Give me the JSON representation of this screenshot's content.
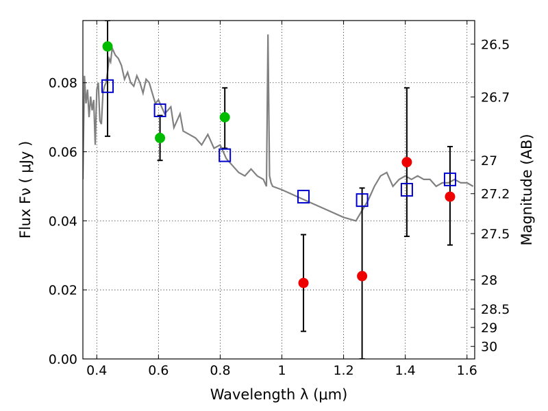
{
  "chart_data": {
    "type": "scatter",
    "xlabel": "Wavelength  λ (μm)",
    "ylabel": "Flux  Fν  ( μJy )",
    "y2label": "Magnitude (AB)",
    "xlim": [
      0.355,
      1.625
    ],
    "ylim": [
      0.0,
      0.098
    ],
    "grid": true,
    "x_ticks": [
      0.4,
      0.6,
      0.8,
      1.0,
      1.2,
      1.4,
      1.6
    ],
    "x_tick_labels": [
      "0.4",
      "0.6",
      "0.8",
      "1",
      "1.2",
      "1.4",
      "1.6"
    ],
    "y_ticks": [
      0.0,
      0.02,
      0.04,
      0.06,
      0.08
    ],
    "y_tick_labels": [
      "0.00",
      "0.02",
      "0.04",
      "0.06",
      "0.08"
    ],
    "magnitude_ticks": [
      {
        "label": "26.5",
        "value": 26.5
      },
      {
        "label": "26.7",
        "value": 26.7
      },
      {
        "label": "27",
        "value": 27.0
      },
      {
        "label": "27.2",
        "value": 27.2
      },
      {
        "label": "27.5",
        "value": 27.5
      },
      {
        "label": "28",
        "value": 28.0
      },
      {
        "label": "28.5",
        "value": 28.5
      },
      {
        "label": "29",
        "value": 29.0
      },
      {
        "label": "30",
        "value": 30.0
      }
    ],
    "colors": {
      "template": "#808080",
      "model": "#0000cc",
      "detected": "#00bb00",
      "nondetected": "#ee0000",
      "errorbar": "#000000"
    },
    "template_spectrum": {
      "x": [
        0.355,
        0.36,
        0.365,
        0.37,
        0.375,
        0.38,
        0.385,
        0.39,
        0.395,
        0.4,
        0.405,
        0.41,
        0.415,
        0.42,
        0.425,
        0.43,
        0.435,
        0.44,
        0.445,
        0.45,
        0.46,
        0.47,
        0.48,
        0.49,
        0.5,
        0.51,
        0.52,
        0.53,
        0.54,
        0.55,
        0.56,
        0.57,
        0.58,
        0.59,
        0.6,
        0.61,
        0.62,
        0.63,
        0.64,
        0.65,
        0.66,
        0.67,
        0.68,
        0.7,
        0.72,
        0.74,
        0.76,
        0.78,
        0.8,
        0.82,
        0.84,
        0.86,
        0.88,
        0.9,
        0.92,
        0.94,
        0.95,
        0.955,
        0.96,
        0.965,
        0.97,
        1.0,
        1.05,
        1.1,
        1.15,
        1.2,
        1.24,
        1.26,
        1.28,
        1.3,
        1.32,
        1.34,
        1.36,
        1.38,
        1.4,
        1.42,
        1.44,
        1.46,
        1.48,
        1.5,
        1.52,
        1.54,
        1.56,
        1.58,
        1.6,
        1.62
      ],
      "y": [
        0.052,
        0.082,
        0.074,
        0.078,
        0.07,
        0.076,
        0.072,
        0.075,
        0.062,
        0.078,
        0.08,
        0.069,
        0.068,
        0.077,
        0.079,
        0.08,
        0.083,
        0.087,
        0.086,
        0.09,
        0.088,
        0.087,
        0.085,
        0.081,
        0.083,
        0.08,
        0.079,
        0.082,
        0.08,
        0.077,
        0.081,
        0.08,
        0.077,
        0.074,
        0.075,
        0.073,
        0.071,
        0.072,
        0.073,
        0.067,
        0.069,
        0.071,
        0.066,
        0.065,
        0.064,
        0.062,
        0.065,
        0.061,
        0.062,
        0.058,
        0.056,
        0.054,
        0.053,
        0.055,
        0.053,
        0.052,
        0.05,
        0.094,
        0.053,
        0.051,
        0.05,
        0.049,
        0.047,
        0.045,
        0.043,
        0.041,
        0.04,
        0.043,
        0.046,
        0.05,
        0.053,
        0.054,
        0.05,
        0.052,
        0.053,
        0.052,
        0.053,
        0.052,
        0.052,
        0.05,
        0.051,
        0.051,
        0.052,
        0.051,
        0.051,
        0.05
      ]
    },
    "model_fluxes": {
      "x": [
        0.435,
        0.605,
        0.815,
        1.07,
        1.26,
        1.405,
        1.545
      ],
      "y": [
        0.079,
        0.072,
        0.059,
        0.047,
        0.046,
        0.049,
        0.052
      ]
    },
    "detections": {
      "x": [
        0.435,
        0.605,
        0.815
      ],
      "y": [
        0.0905,
        0.064,
        0.07
      ],
      "yerr_low": [
        0.0645,
        0.0575,
        0.061
      ],
      "yerr_high": [
        0.098,
        0.0705,
        0.0785
      ]
    },
    "nondetections": {
      "x": [
        1.07,
        1.26,
        1.405,
        1.545
      ],
      "y": [
        0.022,
        0.024,
        0.057,
        0.047
      ],
      "yerr_low": [
        0.008,
        0.0,
        0.0355,
        0.033
      ],
      "yerr_high": [
        0.036,
        0.0495,
        0.0785,
        0.0615
      ]
    }
  }
}
